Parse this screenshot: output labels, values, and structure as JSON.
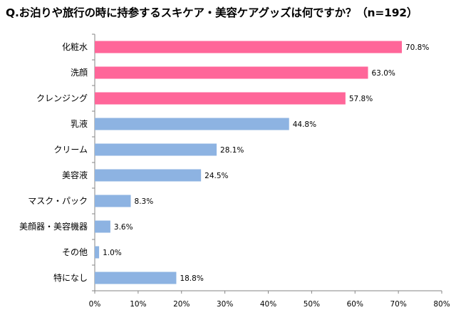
{
  "chart_data": {
    "type": "bar",
    "orientation": "horizontal",
    "title": "Q.お泊りや旅行の時に持参するスキケア・美容ケアグッズは何ですか？（n=192）",
    "categories": [
      "化粧水",
      "洗顔",
      "クレンジング",
      "乳液",
      "クリーム",
      "美容液",
      "マスク・パック",
      "美顔器・美容機器",
      "その他",
      "特になし"
    ],
    "values": [
      70.8,
      63.0,
      57.8,
      44.8,
      28.1,
      24.5,
      8.3,
      3.6,
      1.0,
      18.8
    ],
    "value_labels": [
      "70.8%",
      "63.0%",
      "57.8%",
      "44.8%",
      "28.1%",
      "24.5%",
      "8.3%",
      "3.6%",
      "1.0%",
      "18.8%"
    ],
    "bar_colors": [
      "#ff6699",
      "#ff6699",
      "#ff6699",
      "#8db3e2",
      "#8db3e2",
      "#8db3e2",
      "#8db3e2",
      "#8db3e2",
      "#8db3e2",
      "#8db3e2"
    ],
    "xlim": [
      0,
      80
    ],
    "x_ticks": [
      "0%",
      "10%",
      "20%",
      "30%",
      "40%",
      "50%",
      "60%",
      "70%",
      "80%"
    ],
    "xlabel": "",
    "ylabel": "",
    "grid": false,
    "legend": "none"
  }
}
